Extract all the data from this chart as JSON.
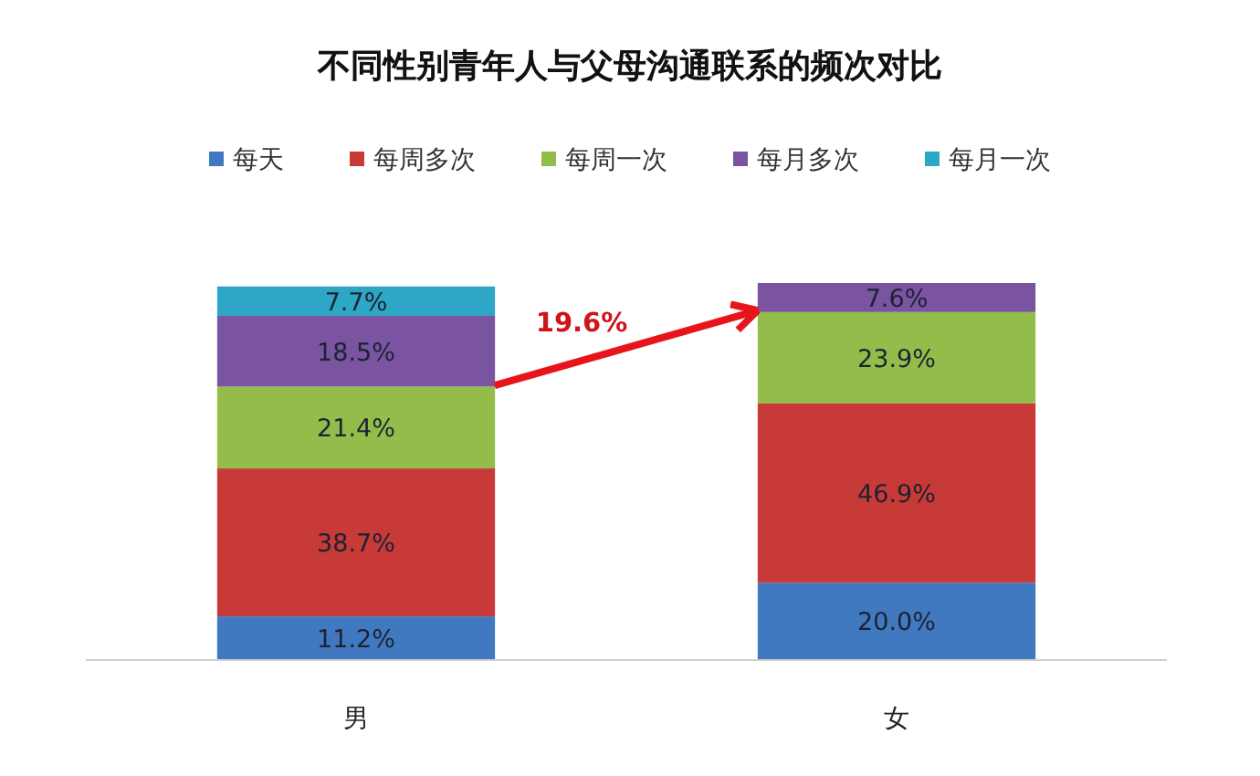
{
  "chart_data": {
    "type": "bar",
    "title": "不同性别青年人与父母沟通联系的频次对比",
    "categories": [
      "男",
      "女"
    ],
    "stacked": true,
    "legend": "top",
    "series": [
      {
        "name": "每天",
        "color": "#4079c0",
        "values": [
          11.2,
          20.0
        ],
        "value_labels": [
          "11.2%",
          "20.0%"
        ]
      },
      {
        "name": "每周多次",
        "color": "#c73a37",
        "values": [
          38.7,
          46.9
        ],
        "value_labels": [
          "38.7%",
          "46.9%"
        ]
      },
      {
        "name": "每周一次",
        "color": "#93bd4a",
        "values": [
          21.4,
          23.9
        ],
        "value_labels": [
          "21.4%",
          "23.9%"
        ]
      },
      {
        "name": "每月多次",
        "color": "#7a54a0",
        "values": [
          18.5,
          7.6
        ],
        "value_labels": [
          "18.5%",
          "7.6%"
        ]
      },
      {
        "name": "每月一次",
        "color": "#2ea7c7",
        "values": [
          7.7,
          null
        ],
        "value_labels": [
          "7.7%",
          null
        ]
      }
    ],
    "annotations": [
      "19.6%"
    ]
  }
}
